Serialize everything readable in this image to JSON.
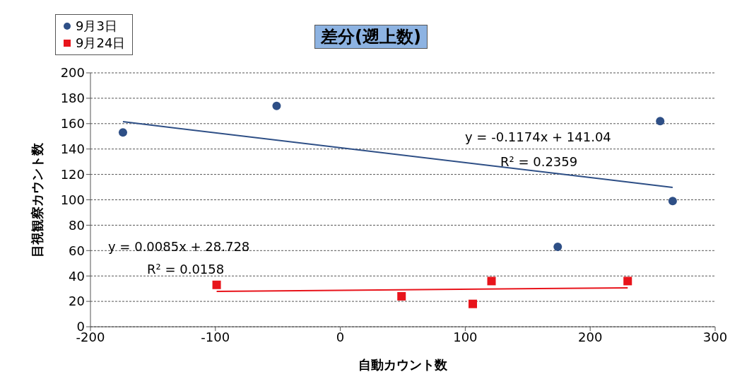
{
  "chart_data": {
    "type": "scatter",
    "title": "差分(遡上数)",
    "xlabel": "自動カウント数",
    "ylabel": "目視観察カウント数",
    "xlim": [
      -200,
      300
    ],
    "xticks": [
      -200,
      -100,
      0,
      100,
      200,
      300
    ],
    "ylim": [
      0,
      200
    ],
    "yticks": [
      0,
      20,
      40,
      60,
      80,
      100,
      120,
      140,
      160,
      180,
      200
    ],
    "grid": "y",
    "legend": "top left",
    "series": [
      {
        "name": "9月3日",
        "marker": "circle",
        "color": "#2e4f86",
        "x": [
          -174,
          -51,
          256,
          266,
          174
        ],
        "values": [
          153,
          174,
          162,
          99,
          63
        ]
      },
      {
        "name": "9月24日",
        "marker": "square",
        "color": "#e8141b",
        "x": [
          -99,
          49,
          106,
          121,
          230
        ],
        "values": [
          33,
          24,
          18,
          36,
          36
        ]
      },
      {
        "type": "line",
        "color": "#2e4f86",
        "x": [
          -174,
          266
        ],
        "values": [
          161.5,
          109.8
        ]
      },
      {
        "type": "line",
        "color": "#e8141b",
        "x": [
          -99,
          230
        ],
        "values": [
          27.9,
          30.7
        ]
      }
    ],
    "annotations": [
      "y = -0.1174x + 141.04",
      "R² = 0.2359",
      "y = 0.0085x + 28.728",
      "R² = 0.0158"
    ]
  }
}
